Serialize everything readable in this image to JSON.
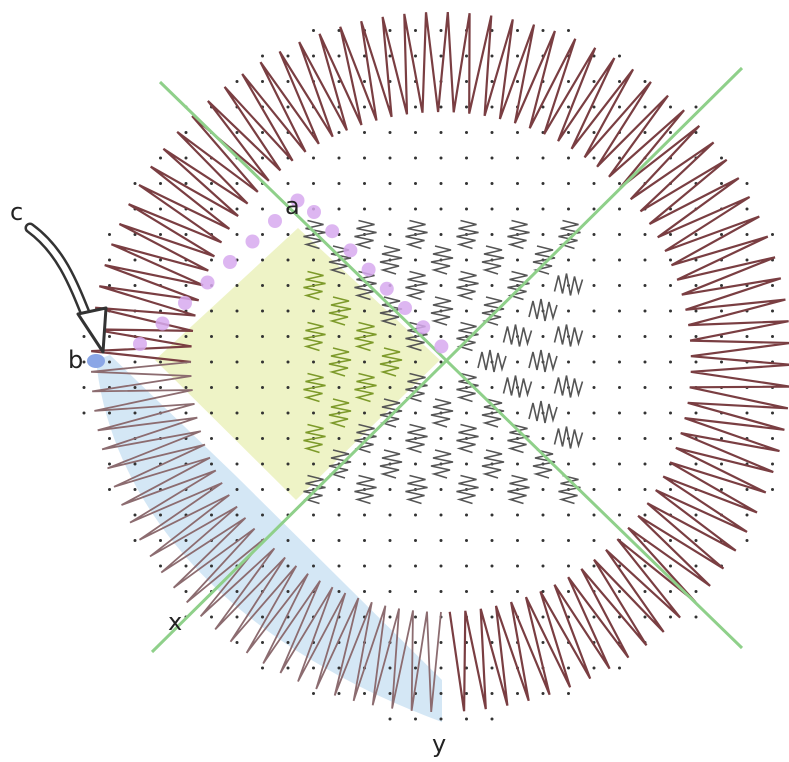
{
  "labels": {
    "a": "a",
    "b": "b",
    "c": "c",
    "x": "x",
    "y": "y"
  },
  "colors": {
    "background": "#ffffff",
    "outer_stitch": "#7a3e42",
    "inner_stitch": "#555555",
    "quadrant_stitch": "#7d9a2a",
    "quadrant_fill": "#eef3c6",
    "guide_line": "#8fd08a",
    "arc_fill": "#cfe4f4",
    "arc_stitch": "#8c6c70",
    "highlight_dot": "#d7a9ee",
    "start_dot": "#8aa6e6",
    "grid_dot": "#333333",
    "arrow_stroke": "#333333"
  },
  "icons": {
    "arrow": "hollow-arrow-icon"
  }
}
